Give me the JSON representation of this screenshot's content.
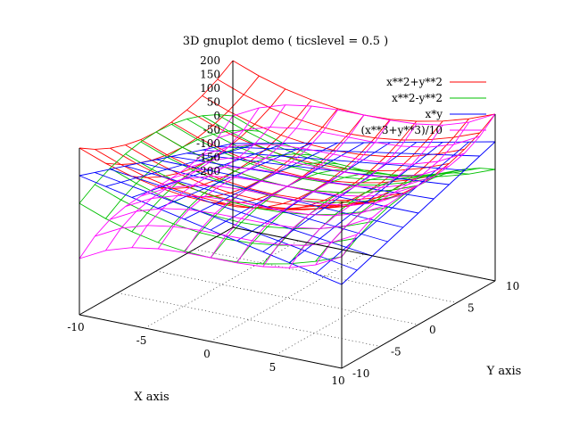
{
  "chart_data": {
    "type": "surface",
    "title": "3D gnuplot demo ( ticslevel = 0.5 )",
    "xlabel": "X axis",
    "ylabel": "Y axis",
    "zlabel": "",
    "xlim": [
      -10,
      10
    ],
    "ylim": [
      -10,
      10
    ],
    "zlim": [
      -200,
      200
    ],
    "ticslevel": 0.5,
    "view": {
      "rot_x": 60,
      "rot_z": 30
    },
    "grid": "xy base",
    "legend_position": "top-right",
    "x_ticks": [
      -10,
      -5,
      0,
      5,
      10
    ],
    "y_ticks": [
      -10,
      -5,
      0,
      5,
      10
    ],
    "z_ticks": [
      -200,
      -150,
      -100,
      -50,
      0,
      50,
      100,
      150,
      200
    ],
    "sample_count": 11,
    "series": [
      {
        "name": "x**2+y**2",
        "function": "x**2+y**2",
        "color": "#ff0000"
      },
      {
        "name": "x**2-y**2",
        "function": "x**2-y**2",
        "color": "#00c000"
      },
      {
        "name": "x*y",
        "function": "x*y",
        "color": "#0000ff"
      },
      {
        "name": "(x**3+y**3)/10",
        "function": "(x**3+y**3)/10",
        "color": "#ff00ff"
      }
    ]
  }
}
